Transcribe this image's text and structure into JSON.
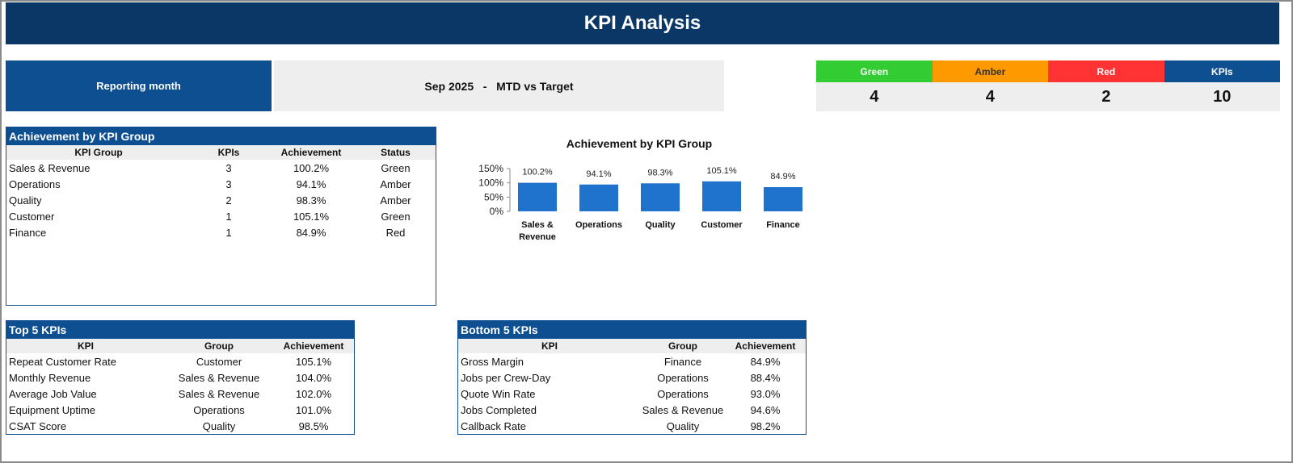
{
  "header": {
    "title": "KPI Analysis"
  },
  "reporting": {
    "label": "Reporting month",
    "value": "Sep 2025   -   MTD vs Target"
  },
  "status_cards": [
    {
      "label": "Green",
      "value": "4",
      "color": "#33cc33",
      "text_color": "#ffffff"
    },
    {
      "label": "Amber",
      "value": "4",
      "color": "#ff9900",
      "text_color": "#333333"
    },
    {
      "label": "Red",
      "value": "2",
      "color": "#ff3333",
      "text_color": "#ffffff"
    },
    {
      "label": "KPIs",
      "value": "10",
      "color": "#0e4f91",
      "text_color": "#ffffff"
    }
  ],
  "group_table": {
    "title": "Achievement by KPI Group",
    "headers": [
      "KPI Group",
      "KPIs",
      "Achievement",
      "Status"
    ],
    "rows": [
      [
        "Sales & Revenue",
        "3",
        "100.2%",
        "Green"
      ],
      [
        "Operations",
        "3",
        "94.1%",
        "Amber"
      ],
      [
        "Quality",
        "2",
        "98.3%",
        "Amber"
      ],
      [
        "Customer",
        "1",
        "105.1%",
        "Green"
      ],
      [
        "Finance",
        "1",
        "84.9%",
        "Red"
      ]
    ]
  },
  "chart_data": {
    "type": "bar",
    "title": "Achievement by KPI Group",
    "categories": [
      "Sales & Revenue",
      "Operations",
      "Quality",
      "Customer",
      "Finance"
    ],
    "values": [
      100.2,
      94.1,
      98.3,
      105.1,
      84.9
    ],
    "data_labels": [
      "100.2%",
      "94.1%",
      "98.3%",
      "105.1%",
      "84.9%"
    ],
    "ylim": [
      0,
      150
    ],
    "yticks": [
      "150%",
      "100%",
      "50%",
      "0%"
    ],
    "bar_color": "#1f73cc",
    "xlabel": "",
    "ylabel": ""
  },
  "top_table": {
    "title": "Top 5 KPIs",
    "headers": [
      "KPI",
      "Group",
      "Achievement"
    ],
    "rows": [
      [
        "Repeat Customer Rate",
        "Customer",
        "105.1%"
      ],
      [
        "Monthly Revenue",
        "Sales & Revenue",
        "104.0%"
      ],
      [
        "Average Job Value",
        "Sales & Revenue",
        "102.0%"
      ],
      [
        "Equipment Uptime",
        "Operations",
        "101.0%"
      ],
      [
        "CSAT Score",
        "Quality",
        "98.5%"
      ]
    ]
  },
  "bottom_table": {
    "title": "Bottom 5 KPIs",
    "headers": [
      "KPI",
      "Group",
      "Achievement"
    ],
    "rows": [
      [
        "Gross Margin",
        "Finance",
        "84.9%"
      ],
      [
        "Jobs per Crew-Day",
        "Operations",
        "88.4%"
      ],
      [
        "Quote Win Rate",
        "Operations",
        "93.0%"
      ],
      [
        "Jobs Completed",
        "Sales & Revenue",
        "94.6%"
      ],
      [
        "Callback Rate",
        "Quality",
        "98.2%"
      ]
    ]
  }
}
